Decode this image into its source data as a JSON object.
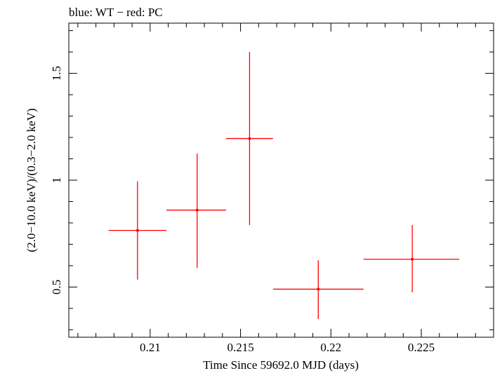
{
  "chart_data": {
    "type": "scatter",
    "title": "blue: WT − red: PC",
    "xlabel": "Time Since 59692.0 MJD (days)",
    "ylabel": "(2.0−10.0 keV)/(0.3−2.0 keV)",
    "xlim": [
      0.2055,
      0.229
    ],
    "ylim": [
      0.265,
      1.735
    ],
    "x_ticks": [
      0.21,
      0.215,
      0.22,
      0.225
    ],
    "x_tick_labels": [
      "0.21",
      "0.215",
      "0.22",
      "0.225"
    ],
    "y_ticks": [
      0.5,
      1.0,
      1.5
    ],
    "y_tick_labels": [
      "0.5",
      "1",
      "1.5"
    ],
    "grid": false,
    "series": [
      {
        "name": "PC",
        "color": "#ff0000",
        "points": [
          {
            "x": 0.2093,
            "y": 0.765,
            "xerr_low": 0.2077,
            "xerr_high": 0.2109,
            "yerr_low": 0.535,
            "yerr_high": 0.995
          },
          {
            "x": 0.2126,
            "y": 0.86,
            "xerr_low": 0.2109,
            "xerr_high": 0.2142,
            "yerr_low": 0.59,
            "yerr_high": 1.125
          },
          {
            "x": 0.2155,
            "y": 1.195,
            "xerr_low": 0.2142,
            "xerr_high": 0.2168,
            "yerr_low": 0.79,
            "yerr_high": 1.6
          },
          {
            "x": 0.2193,
            "y": 0.49,
            "xerr_low": 0.2168,
            "xerr_high": 0.2218,
            "yerr_low": 0.35,
            "yerr_high": 0.625
          },
          {
            "x": 0.2245,
            "y": 0.63,
            "xerr_low": 0.2218,
            "xerr_high": 0.2271,
            "yerr_low": 0.475,
            "yerr_high": 0.79
          }
        ]
      }
    ]
  }
}
